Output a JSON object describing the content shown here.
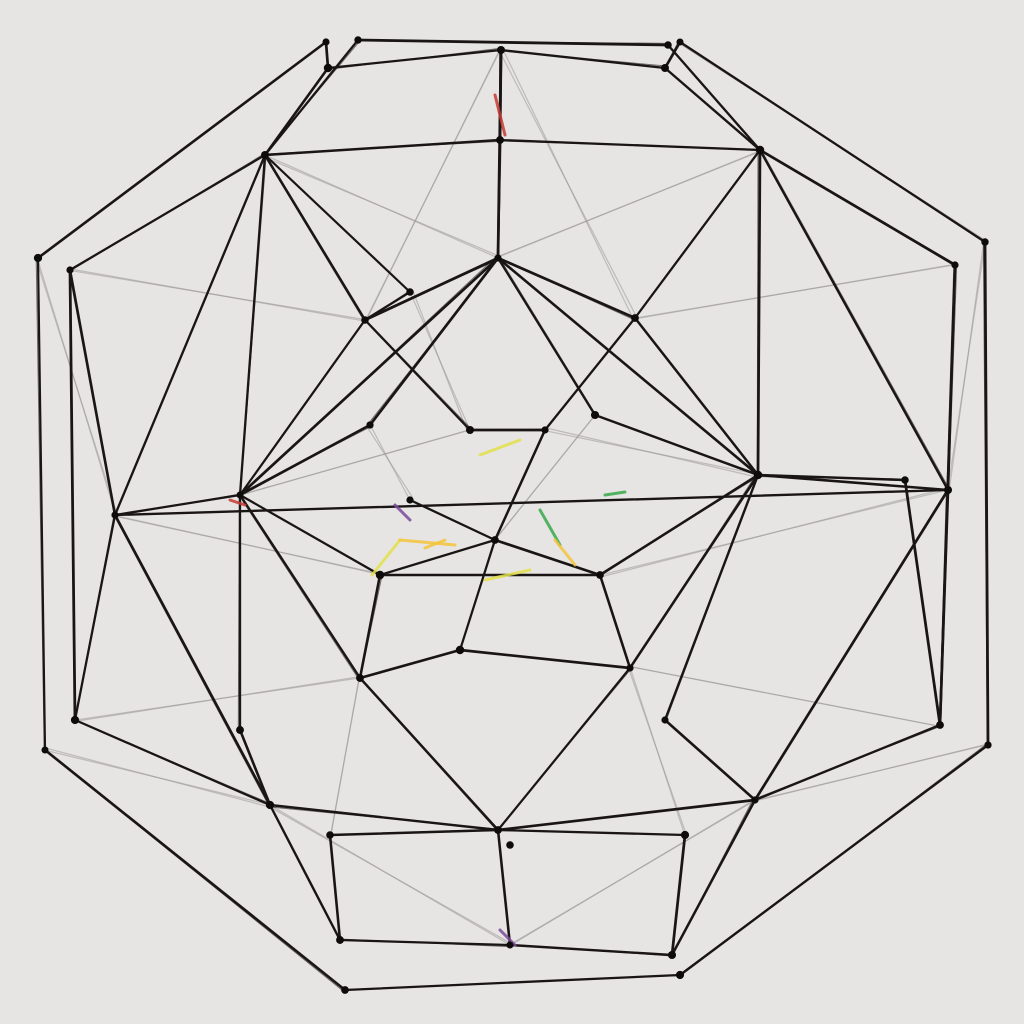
{
  "artwork": {
    "subject": "wireframe-polyhedron",
    "background_color": "#e6e5e4",
    "line_color": "#1a1614",
    "ghost_line_color": "#9a9896",
    "vertex_color": "#0e0c0b",
    "accent_colors": [
      "#e3e04a",
      "#f2c43a",
      "#3aa84a",
      "#c63a32",
      "#7a4a9a"
    ]
  }
}
